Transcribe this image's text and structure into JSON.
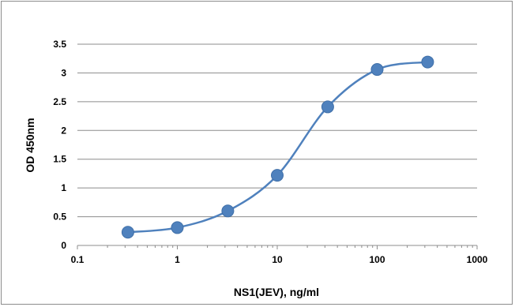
{
  "chart_data": {
    "type": "scatter",
    "title": "",
    "xlabel": "NS1(JEV), ng/ml",
    "ylabel": "OD 450nm",
    "x_scale": "log",
    "xlim": [
      0.1,
      1000
    ],
    "ylim": [
      0,
      3.5
    ],
    "x_ticks": [
      0.1,
      1,
      10,
      100,
      1000
    ],
    "x_tick_labels": [
      "0.1",
      "1",
      "10",
      "100",
      "1000"
    ],
    "y_ticks": [
      0,
      0.5,
      1,
      1.5,
      2,
      2.5,
      3,
      3.5
    ],
    "y_tick_labels": [
      "0",
      "0.5",
      "1",
      "1.5",
      "2",
      "2.5",
      "3",
      "3.5"
    ],
    "grid": "horizontal",
    "legend": "none",
    "series": [
      {
        "x": [
          0.32,
          1,
          3.2,
          10,
          32,
          100,
          320
        ],
        "y": [
          0.23,
          0.31,
          0.6,
          1.22,
          2.41,
          3.06,
          3.19
        ],
        "marker": "circle",
        "line": "smooth",
        "color": "#4f81bd"
      }
    ]
  }
}
